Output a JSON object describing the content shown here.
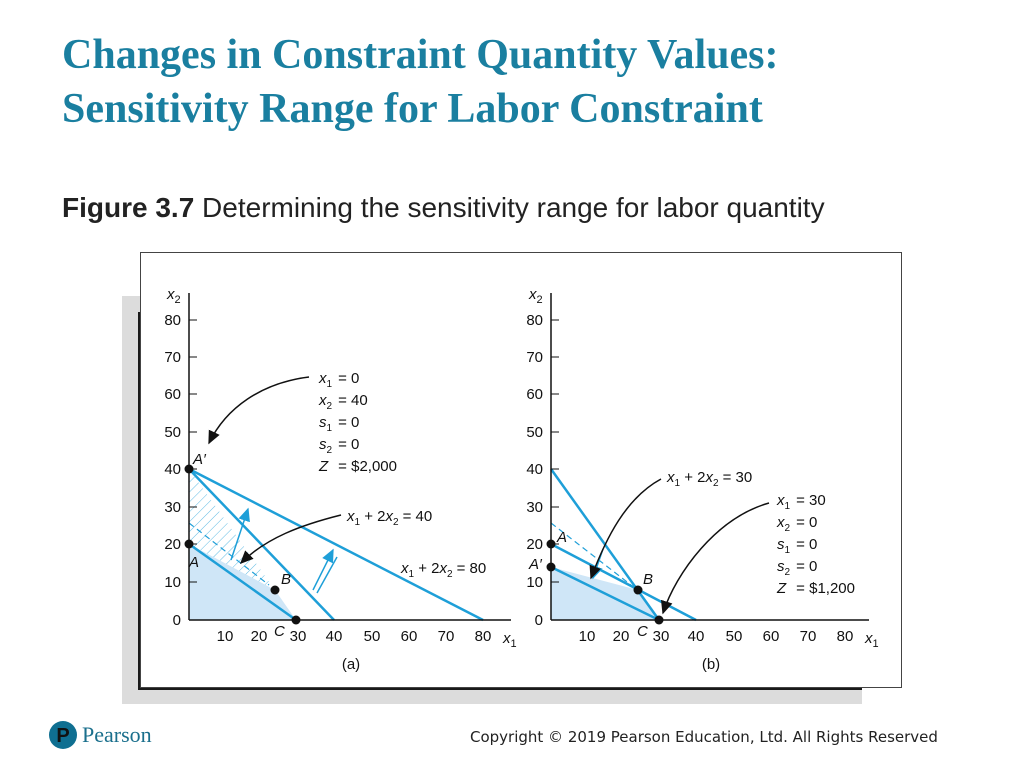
{
  "title_line1": "Changes in Constraint Quantity Values:",
  "title_line2": "Sensitivity Range for Labor Constraint",
  "figure_number": "Figure 3.7",
  "figure_caption": " Determining the sensitivity range for labor quantity",
  "footer": "Copyright © 2019 Pearson Education, Ltd. All Rights Reserved",
  "logo_text": "Pearson",
  "colors": {
    "title": "#1a7fa0",
    "line": "#1e9fd8",
    "fill": "#cfe6f7"
  },
  "panel_a": {
    "label": "(a)",
    "y_axis_label": "x",
    "y_axis_sub": "2",
    "x_axis_label": "x",
    "x_axis_sub": "1",
    "y_ticks": [
      "0",
      "10",
      "20",
      "30",
      "40",
      "50",
      "60",
      "70",
      "80"
    ],
    "x_ticks": [
      "10",
      "20",
      "30",
      "40",
      "50",
      "60",
      "70",
      "80"
    ],
    "points": {
      "A_prime": "A′",
      "A": "A",
      "B": "B",
      "C": "C"
    },
    "solution": {
      "x1": "= 0",
      "x2": "= 40",
      "s1": "= 0",
      "s2": "= 0",
      "Z": "= $2,000"
    },
    "eq1": "= 40",
    "eq2": "= 80"
  },
  "panel_b": {
    "label": "(b)",
    "y_axis_label": "x",
    "y_axis_sub": "2",
    "x_axis_label": "x",
    "x_axis_sub": "1",
    "y_ticks": [
      "0",
      "10",
      "20",
      "30",
      "40",
      "50",
      "60",
      "70",
      "80"
    ],
    "x_ticks": [
      "10",
      "20",
      "30",
      "40",
      "50",
      "60",
      "70",
      "80"
    ],
    "points": {
      "A_prime": "A′",
      "A": "A",
      "B": "B",
      "C": "C"
    },
    "solution": {
      "x1": "= 30",
      "x2": "= 0",
      "s1": "= 0",
      "s2": "= 0",
      "Z": "= $1,200"
    },
    "eq1": "= 30"
  }
}
